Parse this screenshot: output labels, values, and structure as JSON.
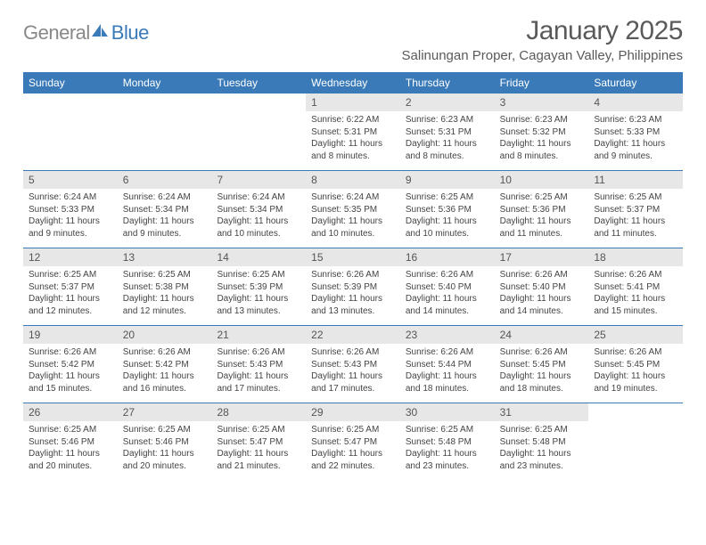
{
  "logo": {
    "text_gray": "General",
    "text_blue": "Blue"
  },
  "title": "January 2025",
  "location": "Salinungan Proper, Cagayan Valley, Philippines",
  "colors": {
    "header_bg": "#3a7ab8",
    "weekday_text": "#ffffff",
    "daynum_bg": "#e7e7e7",
    "body_text": "#444444",
    "title_text": "#5a5a5a",
    "week_border": "#3a7ab8"
  },
  "weekdays": [
    "Sunday",
    "Monday",
    "Tuesday",
    "Wednesday",
    "Thursday",
    "Friday",
    "Saturday"
  ],
  "weeks": [
    [
      {
        "n": "",
        "sr": "",
        "ss": "",
        "dl": ""
      },
      {
        "n": "",
        "sr": "",
        "ss": "",
        "dl": ""
      },
      {
        "n": "",
        "sr": "",
        "ss": "",
        "dl": ""
      },
      {
        "n": "1",
        "sr": "Sunrise: 6:22 AM",
        "ss": "Sunset: 5:31 PM",
        "dl": "Daylight: 11 hours and 8 minutes."
      },
      {
        "n": "2",
        "sr": "Sunrise: 6:23 AM",
        "ss": "Sunset: 5:31 PM",
        "dl": "Daylight: 11 hours and 8 minutes."
      },
      {
        "n": "3",
        "sr": "Sunrise: 6:23 AM",
        "ss": "Sunset: 5:32 PM",
        "dl": "Daylight: 11 hours and 8 minutes."
      },
      {
        "n": "4",
        "sr": "Sunrise: 6:23 AM",
        "ss": "Sunset: 5:33 PM",
        "dl": "Daylight: 11 hours and 9 minutes."
      }
    ],
    [
      {
        "n": "5",
        "sr": "Sunrise: 6:24 AM",
        "ss": "Sunset: 5:33 PM",
        "dl": "Daylight: 11 hours and 9 minutes."
      },
      {
        "n": "6",
        "sr": "Sunrise: 6:24 AM",
        "ss": "Sunset: 5:34 PM",
        "dl": "Daylight: 11 hours and 9 minutes."
      },
      {
        "n": "7",
        "sr": "Sunrise: 6:24 AM",
        "ss": "Sunset: 5:34 PM",
        "dl": "Daylight: 11 hours and 10 minutes."
      },
      {
        "n": "8",
        "sr": "Sunrise: 6:24 AM",
        "ss": "Sunset: 5:35 PM",
        "dl": "Daylight: 11 hours and 10 minutes."
      },
      {
        "n": "9",
        "sr": "Sunrise: 6:25 AM",
        "ss": "Sunset: 5:36 PM",
        "dl": "Daylight: 11 hours and 10 minutes."
      },
      {
        "n": "10",
        "sr": "Sunrise: 6:25 AM",
        "ss": "Sunset: 5:36 PM",
        "dl": "Daylight: 11 hours and 11 minutes."
      },
      {
        "n": "11",
        "sr": "Sunrise: 6:25 AM",
        "ss": "Sunset: 5:37 PM",
        "dl": "Daylight: 11 hours and 11 minutes."
      }
    ],
    [
      {
        "n": "12",
        "sr": "Sunrise: 6:25 AM",
        "ss": "Sunset: 5:37 PM",
        "dl": "Daylight: 11 hours and 12 minutes."
      },
      {
        "n": "13",
        "sr": "Sunrise: 6:25 AM",
        "ss": "Sunset: 5:38 PM",
        "dl": "Daylight: 11 hours and 12 minutes."
      },
      {
        "n": "14",
        "sr": "Sunrise: 6:25 AM",
        "ss": "Sunset: 5:39 PM",
        "dl": "Daylight: 11 hours and 13 minutes."
      },
      {
        "n": "15",
        "sr": "Sunrise: 6:26 AM",
        "ss": "Sunset: 5:39 PM",
        "dl": "Daylight: 11 hours and 13 minutes."
      },
      {
        "n": "16",
        "sr": "Sunrise: 6:26 AM",
        "ss": "Sunset: 5:40 PM",
        "dl": "Daylight: 11 hours and 14 minutes."
      },
      {
        "n": "17",
        "sr": "Sunrise: 6:26 AM",
        "ss": "Sunset: 5:40 PM",
        "dl": "Daylight: 11 hours and 14 minutes."
      },
      {
        "n": "18",
        "sr": "Sunrise: 6:26 AM",
        "ss": "Sunset: 5:41 PM",
        "dl": "Daylight: 11 hours and 15 minutes."
      }
    ],
    [
      {
        "n": "19",
        "sr": "Sunrise: 6:26 AM",
        "ss": "Sunset: 5:42 PM",
        "dl": "Daylight: 11 hours and 15 minutes."
      },
      {
        "n": "20",
        "sr": "Sunrise: 6:26 AM",
        "ss": "Sunset: 5:42 PM",
        "dl": "Daylight: 11 hours and 16 minutes."
      },
      {
        "n": "21",
        "sr": "Sunrise: 6:26 AM",
        "ss": "Sunset: 5:43 PM",
        "dl": "Daylight: 11 hours and 17 minutes."
      },
      {
        "n": "22",
        "sr": "Sunrise: 6:26 AM",
        "ss": "Sunset: 5:43 PM",
        "dl": "Daylight: 11 hours and 17 minutes."
      },
      {
        "n": "23",
        "sr": "Sunrise: 6:26 AM",
        "ss": "Sunset: 5:44 PM",
        "dl": "Daylight: 11 hours and 18 minutes."
      },
      {
        "n": "24",
        "sr": "Sunrise: 6:26 AM",
        "ss": "Sunset: 5:45 PM",
        "dl": "Daylight: 11 hours and 18 minutes."
      },
      {
        "n": "25",
        "sr": "Sunrise: 6:26 AM",
        "ss": "Sunset: 5:45 PM",
        "dl": "Daylight: 11 hours and 19 minutes."
      }
    ],
    [
      {
        "n": "26",
        "sr": "Sunrise: 6:25 AM",
        "ss": "Sunset: 5:46 PM",
        "dl": "Daylight: 11 hours and 20 minutes."
      },
      {
        "n": "27",
        "sr": "Sunrise: 6:25 AM",
        "ss": "Sunset: 5:46 PM",
        "dl": "Daylight: 11 hours and 20 minutes."
      },
      {
        "n": "28",
        "sr": "Sunrise: 6:25 AM",
        "ss": "Sunset: 5:47 PM",
        "dl": "Daylight: 11 hours and 21 minutes."
      },
      {
        "n": "29",
        "sr": "Sunrise: 6:25 AM",
        "ss": "Sunset: 5:47 PM",
        "dl": "Daylight: 11 hours and 22 minutes."
      },
      {
        "n": "30",
        "sr": "Sunrise: 6:25 AM",
        "ss": "Sunset: 5:48 PM",
        "dl": "Daylight: 11 hours and 23 minutes."
      },
      {
        "n": "31",
        "sr": "Sunrise: 6:25 AM",
        "ss": "Sunset: 5:48 PM",
        "dl": "Daylight: 11 hours and 23 minutes."
      },
      {
        "n": "",
        "sr": "",
        "ss": "",
        "dl": ""
      }
    ]
  ]
}
